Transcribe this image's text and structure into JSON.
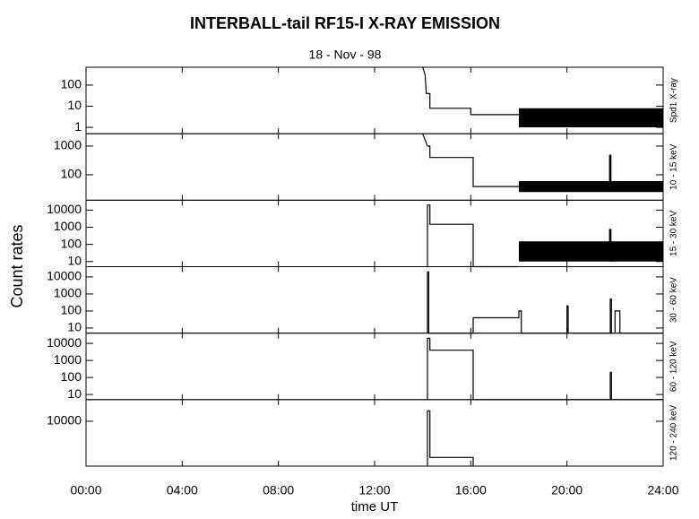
{
  "title": "INTERBALL-tail  RF15-I   X-RAY  EMISSION",
  "subtitle": "18 - Nov - 98",
  "ylabel": "Count  rates",
  "xlabel": "time UT",
  "chart_data": [
    {
      "type": "line",
      "label": "Spd1 X-ray",
      "log": true,
      "xlim": [
        0,
        24
      ],
      "ylim": [
        0.5,
        700
      ],
      "yticks": [
        1,
        10,
        100
      ],
      "x": [
        14.0,
        14.1,
        14.15,
        14.3,
        14.3,
        16.0,
        16.0,
        18.0
      ],
      "values": [
        700,
        300,
        40,
        40,
        8,
        8,
        4,
        4
      ],
      "bands": [
        {
          "x": [
            18.0,
            24.0
          ],
          "low": 1,
          "high": 8
        }
      ]
    },
    {
      "type": "line",
      "label": "10 - 15 keV",
      "log": true,
      "xlim": [
        0,
        24
      ],
      "ylim": [
        13,
        2700
      ],
      "yticks": [
        100,
        1000
      ],
      "x": [
        14.0,
        14.2,
        14.3,
        14.3,
        16.1,
        16.1,
        18.0
      ],
      "values": [
        2700,
        1000,
        1000,
        400,
        400,
        39,
        39
      ],
      "bands": [
        {
          "x": [
            18.0,
            24.0
          ],
          "low": 25,
          "high": 60
        },
        {
          "x": [
            21.75,
            21.85
          ],
          "low": 40,
          "high": 500
        }
      ]
    },
    {
      "type": "line",
      "label": "15 - 30 keV",
      "log": true,
      "xlim": [
        0,
        24
      ],
      "ylim": [
        5,
        38000
      ],
      "yticks": [
        10,
        100,
        1000,
        10000
      ],
      "x": [
        14.2,
        14.2,
        14.3,
        14.3,
        16.1,
        16.1,
        18.0
      ],
      "values": [
        5,
        20000,
        20000,
        1500,
        1500,
        5,
        5
      ],
      "bands": [
        {
          "x": [
            18.0,
            24.0
          ],
          "low": 10,
          "high": 150
        },
        {
          "x": [
            21.75,
            21.85
          ],
          "low": 10,
          "high": 800
        }
      ]
    },
    {
      "type": "line",
      "label": "30 - 60 keV",
      "log": true,
      "xlim": [
        0,
        24
      ],
      "ylim": [
        5,
        40000
      ],
      "yticks": [
        10,
        100,
        1000,
        10000
      ],
      "x": [
        14.2,
        14.2,
        14.25,
        14.25,
        16.1,
        16.1,
        18.0,
        18.0,
        18.1,
        18.1,
        20.0,
        20.0,
        20.05,
        20.05,
        21.8,
        21.8,
        21.85,
        21.85,
        22.0,
        22.0,
        22.2,
        22.2,
        24.0
      ],
      "values": [
        5,
        20000,
        20000,
        5,
        5,
        40,
        40,
        100,
        100,
        5,
        5,
        200,
        200,
        5,
        5,
        500,
        500,
        5,
        5,
        100,
        100,
        5,
        5
      ],
      "bands": []
    },
    {
      "type": "line",
      "label": "60 - 120 keV",
      "log": true,
      "xlim": [
        0,
        24
      ],
      "ylim": [
        5,
        40000
      ],
      "yticks": [
        10,
        100,
        1000,
        10000
      ],
      "x": [
        14.2,
        14.2,
        14.3,
        14.3,
        16.1,
        16.1,
        21.8,
        21.8,
        21.85,
        21.85,
        24.0
      ],
      "values": [
        5,
        20000,
        20000,
        4000,
        4000,
        5,
        5,
        200,
        200,
        5,
        5
      ],
      "bands": []
    },
    {
      "type": "line",
      "label": "120 - 240 keV",
      "log": true,
      "xlim": [
        0,
        24
      ],
      "ylim": [
        25,
        180000
      ],
      "yticks": [
        10000
      ],
      "x": [
        14.2,
        14.2,
        14.3,
        14.3,
        16.1,
        16.1
      ],
      "values": [
        25,
        40000,
        40000,
        80,
        80,
        25
      ],
      "bands": [],
      "xticks": [
        {
          "value": 0,
          "label": "00:00"
        },
        {
          "value": 4,
          "label": "04:00"
        },
        {
          "value": 8,
          "label": "08:00"
        },
        {
          "value": 12,
          "label": "12:00"
        },
        {
          "value": 16,
          "label": "16:00"
        },
        {
          "value": 20,
          "label": "20:00"
        },
        {
          "value": 24,
          "label": "24:00"
        }
      ]
    }
  ]
}
